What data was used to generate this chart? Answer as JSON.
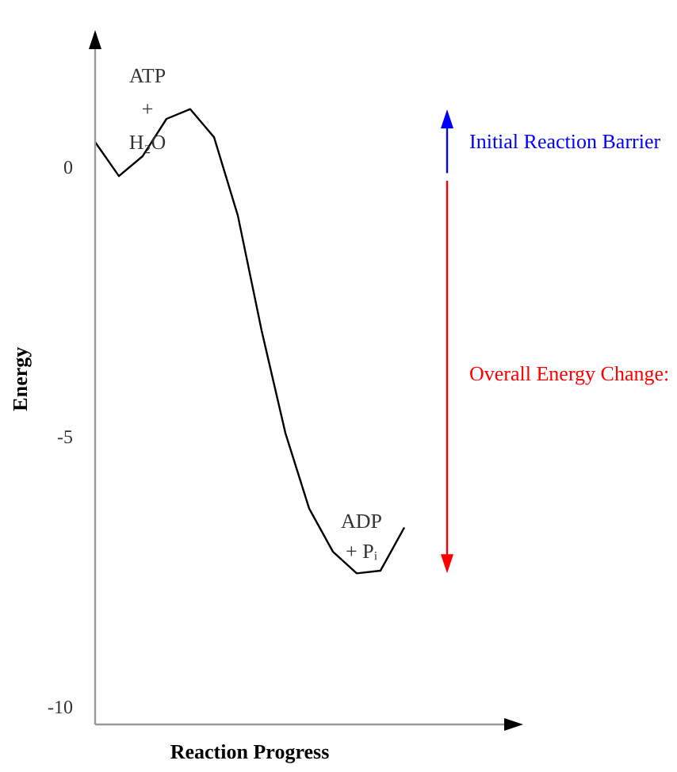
{
  "chart_data": {
    "type": "line",
    "ylabel": "Energy",
    "xlabel": "Reaction Progress",
    "ylim": [
      -10.3,
      2.5
    ],
    "yticks": [
      0,
      -5,
      -10
    ],
    "tick_labels": "y",
    "grid": false,
    "legend": false,
    "marker": "none",
    "categories": [
      null,
      null,
      null,
      null,
      null,
      null,
      null,
      null,
      null,
      null,
      null,
      null,
      null,
      null
    ],
    "series": [
      {
        "color": "#000000",
        "values": [
          0.49,
          -0.14,
          0.23,
          0.92,
          1.1,
          0.58,
          -0.87,
          -3.0,
          -4.9,
          -6.3,
          -7.1,
          -7.5,
          -7.45,
          -6.65
        ]
      }
    ],
    "annotations": [
      "ATP\n+\nH₂O",
      "ADP\n+ Pᵢ",
      "Initial Reaction Barrier",
      "Overall Energy Change:"
    ]
  }
}
